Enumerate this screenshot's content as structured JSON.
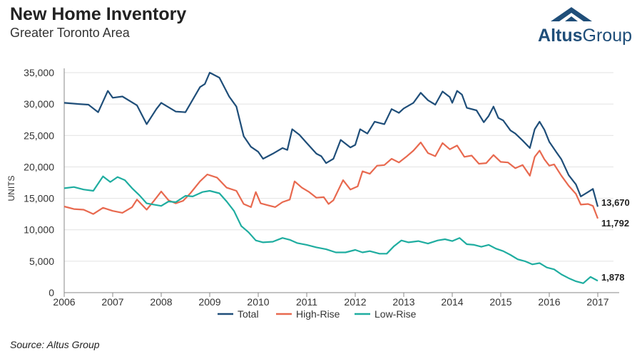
{
  "header": {
    "title": "New Home Inventory",
    "subtitle": "Greater Toronto Area",
    "logo_bold": "Altus",
    "logo_light": "Group"
  },
  "source": "Source: Altus Group",
  "colors": {
    "total": "#1f4e79",
    "high_rise": "#e8694f",
    "low_rise": "#1fada0",
    "logo": "#1f4e79"
  },
  "chart_data": {
    "type": "line",
    "title": "New Home Inventory",
    "subtitle": "Greater Toronto Area",
    "xlabel": "",
    "ylabel": "UNITS",
    "xlim": [
      2006,
      2017
    ],
    "ylim": [
      0,
      35000
    ],
    "x_ticks": [
      "2006",
      "2007",
      "2008",
      "2009",
      "2010",
      "2011",
      "2012",
      "2013",
      "2014",
      "2015",
      "2016",
      "2017"
    ],
    "y_ticks": [
      "0",
      "5,000",
      "10,000",
      "15,000",
      "20,000",
      "25,000",
      "30,000",
      "35,000"
    ],
    "y_tick_values": [
      0,
      5000,
      10000,
      15000,
      20000,
      25000,
      30000,
      35000
    ],
    "grid": "horizontal",
    "legend_position": "bottom",
    "series": [
      {
        "name": "Total",
        "end_label": "13,670",
        "points": [
          [
            2006.0,
            30200
          ],
          [
            2006.3,
            30000
          ],
          [
            2006.5,
            29900
          ],
          [
            2006.7,
            28700
          ],
          [
            2006.9,
            32100
          ],
          [
            2007.0,
            31000
          ],
          [
            2007.2,
            31200
          ],
          [
            2007.5,
            29800
          ],
          [
            2007.7,
            26800
          ],
          [
            2007.9,
            29200
          ],
          [
            2008.0,
            30200
          ],
          [
            2008.3,
            28800
          ],
          [
            2008.5,
            28700
          ],
          [
            2008.8,
            32700
          ],
          [
            2008.9,
            33200
          ],
          [
            2009.0,
            35000
          ],
          [
            2009.2,
            34200
          ],
          [
            2009.4,
            31200
          ],
          [
            2009.55,
            29600
          ],
          [
            2009.7,
            24900
          ],
          [
            2009.85,
            23200
          ],
          [
            2010.0,
            22400
          ],
          [
            2010.1,
            21300
          ],
          [
            2010.3,
            22100
          ],
          [
            2010.5,
            23000
          ],
          [
            2010.6,
            22700
          ],
          [
            2010.7,
            26000
          ],
          [
            2010.85,
            25100
          ],
          [
            2011.0,
            23800
          ],
          [
            2011.2,
            22100
          ],
          [
            2011.3,
            21700
          ],
          [
            2011.4,
            20600
          ],
          [
            2011.55,
            21300
          ],
          [
            2011.7,
            24300
          ],
          [
            2011.9,
            23100
          ],
          [
            2012.0,
            23500
          ],
          [
            2012.1,
            26000
          ],
          [
            2012.25,
            25300
          ],
          [
            2012.4,
            27200
          ],
          [
            2012.6,
            26800
          ],
          [
            2012.75,
            29200
          ],
          [
            2012.9,
            28600
          ],
          [
            2013.0,
            29300
          ],
          [
            2013.2,
            30200
          ],
          [
            2013.35,
            31800
          ],
          [
            2013.5,
            30600
          ],
          [
            2013.65,
            29900
          ],
          [
            2013.8,
            32000
          ],
          [
            2013.95,
            31100
          ],
          [
            2014.0,
            30200
          ],
          [
            2014.1,
            32100
          ],
          [
            2014.2,
            31500
          ],
          [
            2014.3,
            29400
          ],
          [
            2014.5,
            29000
          ],
          [
            2014.65,
            27100
          ],
          [
            2014.75,
            28100
          ],
          [
            2014.85,
            29600
          ],
          [
            2014.95,
            27800
          ],
          [
            2015.05,
            27400
          ],
          [
            2015.2,
            25800
          ],
          [
            2015.3,
            25300
          ],
          [
            2015.45,
            24200
          ],
          [
            2015.6,
            23000
          ],
          [
            2015.7,
            26000
          ],
          [
            2015.8,
            27200
          ],
          [
            2015.9,
            25900
          ],
          [
            2016.0,
            24000
          ],
          [
            2016.15,
            22300
          ],
          [
            2016.25,
            21200
          ],
          [
            2016.4,
            18700
          ],
          [
            2016.55,
            17200
          ],
          [
            2016.65,
            15300
          ],
          [
            2016.8,
            16000
          ],
          [
            2016.9,
            16500
          ],
          [
            2017.0,
            13670
          ]
        ]
      },
      {
        "name": "High-Rise",
        "end_label": "11,792",
        "points": [
          [
            2006.0,
            13700
          ],
          [
            2006.2,
            13300
          ],
          [
            2006.4,
            13200
          ],
          [
            2006.6,
            12500
          ],
          [
            2006.8,
            13500
          ],
          [
            2007.0,
            13000
          ],
          [
            2007.2,
            12700
          ],
          [
            2007.4,
            13600
          ],
          [
            2007.5,
            14800
          ],
          [
            2007.7,
            13200
          ],
          [
            2007.85,
            14600
          ],
          [
            2008.0,
            16100
          ],
          [
            2008.15,
            14700
          ],
          [
            2008.3,
            14200
          ],
          [
            2008.45,
            14600
          ],
          [
            2008.6,
            15800
          ],
          [
            2008.8,
            17700
          ],
          [
            2008.95,
            18800
          ],
          [
            2009.15,
            18300
          ],
          [
            2009.35,
            16700
          ],
          [
            2009.55,
            16200
          ],
          [
            2009.7,
            14100
          ],
          [
            2009.85,
            13600
          ],
          [
            2009.95,
            16000
          ],
          [
            2010.05,
            14200
          ],
          [
            2010.2,
            13900
          ],
          [
            2010.35,
            13600
          ],
          [
            2010.5,
            14400
          ],
          [
            2010.65,
            14800
          ],
          [
            2010.75,
            17700
          ],
          [
            2010.9,
            16700
          ],
          [
            2011.05,
            16000
          ],
          [
            2011.2,
            15100
          ],
          [
            2011.35,
            15200
          ],
          [
            2011.45,
            14100
          ],
          [
            2011.55,
            14700
          ],
          [
            2011.75,
            17900
          ],
          [
            2011.9,
            16400
          ],
          [
            2012.05,
            16900
          ],
          [
            2012.15,
            19300
          ],
          [
            2012.3,
            18900
          ],
          [
            2012.45,
            20200
          ],
          [
            2012.6,
            20300
          ],
          [
            2012.75,
            21300
          ],
          [
            2012.9,
            20700
          ],
          [
            2013.05,
            21600
          ],
          [
            2013.2,
            22600
          ],
          [
            2013.35,
            23900
          ],
          [
            2013.5,
            22200
          ],
          [
            2013.65,
            21700
          ],
          [
            2013.8,
            23800
          ],
          [
            2013.95,
            22800
          ],
          [
            2014.1,
            23400
          ],
          [
            2014.25,
            21600
          ],
          [
            2014.4,
            21800
          ],
          [
            2014.55,
            20500
          ],
          [
            2014.7,
            20600
          ],
          [
            2014.85,
            21900
          ],
          [
            2015.0,
            20800
          ],
          [
            2015.15,
            20700
          ],
          [
            2015.3,
            19800
          ],
          [
            2015.45,
            20300
          ],
          [
            2015.6,
            18600
          ],
          [
            2015.7,
            21600
          ],
          [
            2015.8,
            22600
          ],
          [
            2015.9,
            21200
          ],
          [
            2016.0,
            20200
          ],
          [
            2016.1,
            20400
          ],
          [
            2016.25,
            18600
          ],
          [
            2016.4,
            17000
          ],
          [
            2016.55,
            15700
          ],
          [
            2016.65,
            14000
          ],
          [
            2016.8,
            14100
          ],
          [
            2016.9,
            13800
          ],
          [
            2017.0,
            11792
          ]
        ]
      },
      {
        "name": "Low-Rise",
        "end_label": "1,878",
        "points": [
          [
            2006.0,
            16600
          ],
          [
            2006.2,
            16800
          ],
          [
            2006.4,
            16400
          ],
          [
            2006.6,
            16200
          ],
          [
            2006.8,
            18500
          ],
          [
            2006.95,
            17600
          ],
          [
            2007.1,
            18400
          ],
          [
            2007.25,
            17900
          ],
          [
            2007.4,
            16600
          ],
          [
            2007.55,
            15500
          ],
          [
            2007.7,
            14200
          ],
          [
            2007.85,
            14000
          ],
          [
            2008.0,
            13800
          ],
          [
            2008.15,
            14500
          ],
          [
            2008.3,
            14400
          ],
          [
            2008.5,
            15400
          ],
          [
            2008.65,
            15300
          ],
          [
            2008.85,
            16000
          ],
          [
            2009.0,
            16200
          ],
          [
            2009.2,
            15800
          ],
          [
            2009.35,
            14500
          ],
          [
            2009.5,
            13000
          ],
          [
            2009.65,
            10600
          ],
          [
            2009.8,
            9600
          ],
          [
            2009.95,
            8300
          ],
          [
            2010.1,
            8000
          ],
          [
            2010.3,
            8100
          ],
          [
            2010.5,
            8700
          ],
          [
            2010.65,
            8400
          ],
          [
            2010.8,
            7900
          ],
          [
            2011.0,
            7600
          ],
          [
            2011.2,
            7200
          ],
          [
            2011.4,
            6900
          ],
          [
            2011.6,
            6400
          ],
          [
            2011.8,
            6400
          ],
          [
            2012.0,
            6800
          ],
          [
            2012.15,
            6400
          ],
          [
            2012.3,
            6600
          ],
          [
            2012.5,
            6200
          ],
          [
            2012.65,
            6200
          ],
          [
            2012.8,
            7400
          ],
          [
            2012.95,
            8300
          ],
          [
            2013.1,
            8000
          ],
          [
            2013.3,
            8200
          ],
          [
            2013.5,
            7800
          ],
          [
            2013.7,
            8300
          ],
          [
            2013.85,
            8500
          ],
          [
            2014.0,
            8200
          ],
          [
            2014.15,
            8700
          ],
          [
            2014.3,
            7700
          ],
          [
            2014.45,
            7600
          ],
          [
            2014.6,
            7300
          ],
          [
            2014.75,
            7600
          ],
          [
            2014.9,
            7000
          ],
          [
            2015.05,
            6600
          ],
          [
            2015.2,
            6000
          ],
          [
            2015.35,
            5300
          ],
          [
            2015.5,
            5000
          ],
          [
            2015.65,
            4500
          ],
          [
            2015.8,
            4700
          ],
          [
            2015.95,
            4000
          ],
          [
            2016.1,
            3700
          ],
          [
            2016.25,
            2900
          ],
          [
            2016.4,
            2300
          ],
          [
            2016.55,
            1800
          ],
          [
            2016.7,
            1500
          ],
          [
            2016.85,
            2500
          ],
          [
            2017.0,
            1878
          ]
        ]
      }
    ]
  }
}
